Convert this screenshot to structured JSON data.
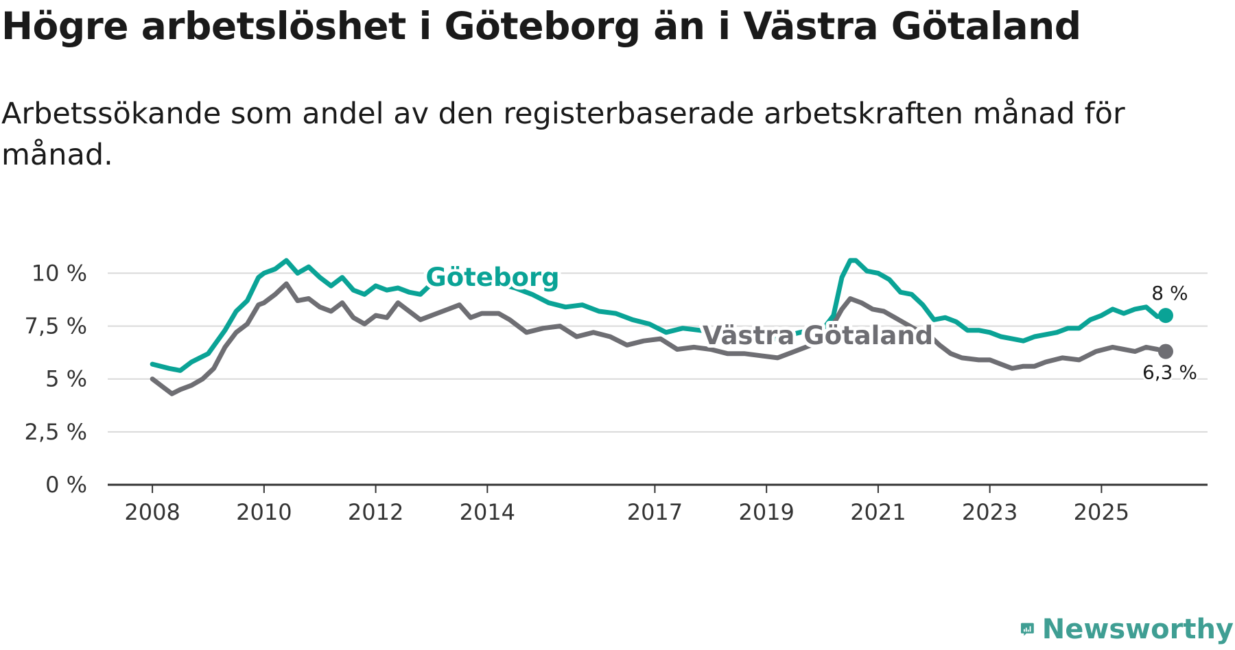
{
  "title": "Högre arbetslöshet i Göteborg än i Västra Götaland",
  "subtitle": "Arbetssökande som andel av den registerbaserade arbetskraften månad för månad.",
  "brand": {
    "name": "Newsworthy",
    "color": "#3f9e93"
  },
  "colors": {
    "goteborg": "#0aa396",
    "vastra": "#6e6e73",
    "grid": "#d9d9d9",
    "axis": "#333333"
  },
  "chart_data": {
    "type": "line",
    "title": "Högre arbetslöshet i Göteborg än i Västra Götaland",
    "subtitle": "Arbetssökande som andel av den registerbaserade arbetskraften månad för månad.",
    "xlabel": "",
    "ylabel": "",
    "ylim": [
      0,
      10.5
    ],
    "xlim": [
      2007.2,
      2026.9
    ],
    "y_ticks": [
      0,
      2.5,
      5,
      7.5,
      10
    ],
    "y_tick_labels": [
      "0 %",
      "2,5 %",
      "5 %",
      "7,5 %",
      "10 %"
    ],
    "x_ticks": [
      2008,
      2010,
      2012,
      2014,
      2017,
      2019,
      2021,
      2023,
      2025
    ],
    "x_tick_labels": [
      "2008",
      "2010",
      "2012",
      "2014",
      "2017",
      "2019",
      "2021",
      "2023",
      "2025"
    ],
    "grid": true,
    "series": [
      {
        "name": "Göteborg",
        "label": "Göteborg",
        "end_label": "8 %",
        "points": [
          [
            2008.0,
            5.7
          ],
          [
            2008.3,
            5.5
          ],
          [
            2008.5,
            5.4
          ],
          [
            2008.7,
            5.8
          ],
          [
            2009.0,
            6.2
          ],
          [
            2009.3,
            7.3
          ],
          [
            2009.5,
            8.2
          ],
          [
            2009.7,
            8.7
          ],
          [
            2009.9,
            9.8
          ],
          [
            2010.0,
            10.0
          ],
          [
            2010.2,
            10.2
          ],
          [
            2010.4,
            10.6
          ],
          [
            2010.6,
            10.0
          ],
          [
            2010.8,
            10.3
          ],
          [
            2011.0,
            9.8
          ],
          [
            2011.2,
            9.4
          ],
          [
            2011.4,
            9.8
          ],
          [
            2011.6,
            9.2
          ],
          [
            2011.8,
            9.0
          ],
          [
            2012.0,
            9.4
          ],
          [
            2012.2,
            9.2
          ],
          [
            2012.4,
            9.3
          ],
          [
            2012.6,
            9.1
          ],
          [
            2012.8,
            9.0
          ],
          [
            2013.0,
            9.5
          ],
          [
            2013.3,
            9.9
          ],
          [
            2013.6,
            9.6
          ],
          [
            2013.9,
            9.8
          ],
          [
            2014.2,
            9.5
          ],
          [
            2014.5,
            9.3
          ],
          [
            2014.8,
            9.0
          ],
          [
            2015.1,
            8.6
          ],
          [
            2015.4,
            8.4
          ],
          [
            2015.7,
            8.5
          ],
          [
            2016.0,
            8.2
          ],
          [
            2016.3,
            8.1
          ],
          [
            2016.6,
            7.8
          ],
          [
            2016.9,
            7.6
          ],
          [
            2017.2,
            7.2
          ],
          [
            2017.5,
            7.4
          ],
          [
            2017.8,
            7.3
          ],
          [
            2018.1,
            7.2
          ],
          [
            2018.4,
            7.1
          ],
          [
            2018.7,
            6.9
          ],
          [
            2019.0,
            6.8
          ],
          [
            2019.3,
            7.0
          ],
          [
            2019.6,
            7.2
          ],
          [
            2019.8,
            7.3
          ],
          [
            2020.0,
            7.3
          ],
          [
            2020.2,
            8.0
          ],
          [
            2020.35,
            9.8
          ],
          [
            2020.5,
            10.6
          ],
          [
            2020.6,
            10.6
          ],
          [
            2020.8,
            10.1
          ],
          [
            2021.0,
            10.0
          ],
          [
            2021.2,
            9.7
          ],
          [
            2021.4,
            9.1
          ],
          [
            2021.6,
            9.0
          ],
          [
            2021.8,
            8.5
          ],
          [
            2022.0,
            7.8
          ],
          [
            2022.2,
            7.9
          ],
          [
            2022.4,
            7.7
          ],
          [
            2022.6,
            7.3
          ],
          [
            2022.8,
            7.3
          ],
          [
            2023.0,
            7.2
          ],
          [
            2023.2,
            7.0
          ],
          [
            2023.4,
            6.9
          ],
          [
            2023.6,
            6.8
          ],
          [
            2023.8,
            7.0
          ],
          [
            2024.0,
            7.1
          ],
          [
            2024.2,
            7.2
          ],
          [
            2024.4,
            7.4
          ],
          [
            2024.6,
            7.4
          ],
          [
            2024.8,
            7.8
          ],
          [
            2025.0,
            8.0
          ],
          [
            2025.2,
            8.3
          ],
          [
            2025.4,
            8.1
          ],
          [
            2025.6,
            8.3
          ],
          [
            2025.8,
            8.4
          ],
          [
            2026.0,
            7.95
          ],
          [
            2026.15,
            8.0
          ]
        ]
      },
      {
        "name": "Västra Götaland",
        "label": "Västra Götaland",
        "end_label": "6,3 %",
        "points": [
          [
            2008.0,
            5.0
          ],
          [
            2008.2,
            4.6
          ],
          [
            2008.35,
            4.3
          ],
          [
            2008.5,
            4.5
          ],
          [
            2008.7,
            4.7
          ],
          [
            2008.9,
            5.0
          ],
          [
            2009.1,
            5.5
          ],
          [
            2009.3,
            6.5
          ],
          [
            2009.5,
            7.2
          ],
          [
            2009.7,
            7.6
          ],
          [
            2009.9,
            8.5
          ],
          [
            2010.0,
            8.6
          ],
          [
            2010.2,
            9.0
          ],
          [
            2010.4,
            9.5
          ],
          [
            2010.6,
            8.7
          ],
          [
            2010.8,
            8.8
          ],
          [
            2011.0,
            8.4
          ],
          [
            2011.2,
            8.2
          ],
          [
            2011.4,
            8.6
          ],
          [
            2011.6,
            7.9
          ],
          [
            2011.8,
            7.6
          ],
          [
            2012.0,
            8.0
          ],
          [
            2012.2,
            7.9
          ],
          [
            2012.4,
            8.6
          ],
          [
            2012.6,
            8.2
          ],
          [
            2012.8,
            7.8
          ],
          [
            2013.0,
            8.0
          ],
          [
            2013.3,
            8.3
          ],
          [
            2013.5,
            8.5
          ],
          [
            2013.7,
            7.9
          ],
          [
            2013.9,
            8.1
          ],
          [
            2014.2,
            8.1
          ],
          [
            2014.4,
            7.8
          ],
          [
            2014.7,
            7.2
          ],
          [
            2015.0,
            7.4
          ],
          [
            2015.3,
            7.5
          ],
          [
            2015.6,
            7.0
          ],
          [
            2015.9,
            7.2
          ],
          [
            2016.2,
            7.0
          ],
          [
            2016.5,
            6.6
          ],
          [
            2016.8,
            6.8
          ],
          [
            2017.1,
            6.9
          ],
          [
            2017.4,
            6.4
          ],
          [
            2017.7,
            6.5
          ],
          [
            2018.0,
            6.4
          ],
          [
            2018.3,
            6.2
          ],
          [
            2018.6,
            6.2
          ],
          [
            2018.9,
            6.1
          ],
          [
            2019.2,
            6.0
          ],
          [
            2019.5,
            6.3
          ],
          [
            2019.8,
            6.6
          ],
          [
            2020.0,
            6.8
          ],
          [
            2020.2,
            7.6
          ],
          [
            2020.35,
            8.3
          ],
          [
            2020.5,
            8.8
          ],
          [
            2020.7,
            8.6
          ],
          [
            2020.9,
            8.3
          ],
          [
            2021.1,
            8.2
          ],
          [
            2021.3,
            7.9
          ],
          [
            2021.5,
            7.6
          ],
          [
            2021.7,
            7.3
          ],
          [
            2021.9,
            7.1
          ],
          [
            2022.1,
            6.6
          ],
          [
            2022.3,
            6.2
          ],
          [
            2022.5,
            6.0
          ],
          [
            2022.8,
            5.9
          ],
          [
            2023.0,
            5.9
          ],
          [
            2023.2,
            5.7
          ],
          [
            2023.4,
            5.5
          ],
          [
            2023.6,
            5.6
          ],
          [
            2023.8,
            5.6
          ],
          [
            2024.0,
            5.8
          ],
          [
            2024.3,
            6.0
          ],
          [
            2024.6,
            5.9
          ],
          [
            2024.9,
            6.3
          ],
          [
            2025.2,
            6.5
          ],
          [
            2025.4,
            6.4
          ],
          [
            2025.6,
            6.3
          ],
          [
            2025.8,
            6.5
          ],
          [
            2026.0,
            6.4
          ],
          [
            2026.15,
            6.3
          ]
        ]
      }
    ],
    "legend": "inline labels"
  }
}
